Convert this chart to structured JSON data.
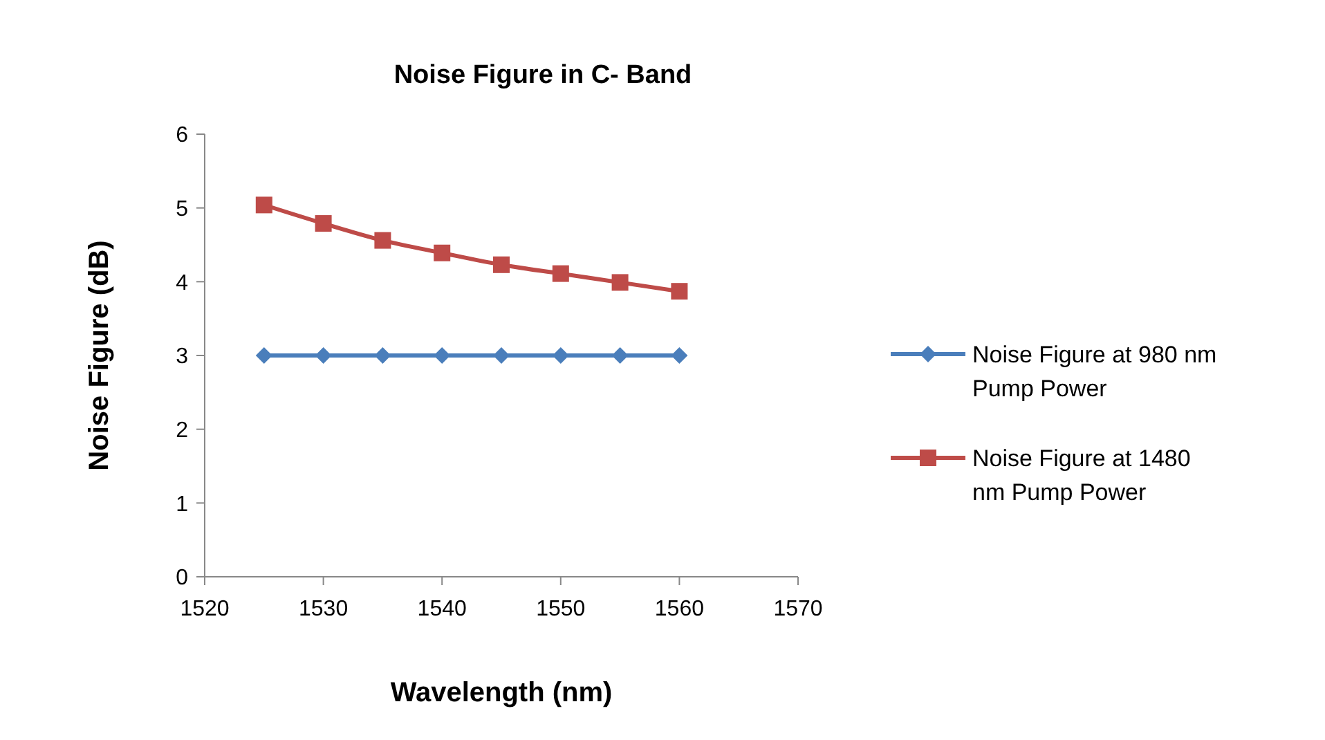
{
  "chart_data": {
    "type": "line",
    "title": "Noise Figure in C- Band",
    "xlabel": "Wavelength (nm)",
    "ylabel": "Noise Figure (dB)",
    "x": [
      1525,
      1530,
      1535,
      1540,
      1545,
      1550,
      1555,
      1560
    ],
    "series": [
      {
        "name": "Noise Figure at 980 nm Pump Power",
        "color": "#4a7ebb",
        "marker": "diamond",
        "values": [
          3,
          3,
          3,
          3,
          3,
          3,
          3,
          3
        ]
      },
      {
        "name": "Noise Figure at 1480 nm Pump Power",
        "color": "#be4b48",
        "marker": "square",
        "values": [
          5.04,
          4.79,
          4.56,
          4.39,
          4.23,
          4.11,
          3.99,
          3.87
        ]
      }
    ],
    "xlim": [
      1520,
      1570
    ],
    "xticks": [
      1520,
      1530,
      1540,
      1550,
      1560,
      1570
    ],
    "ylim": [
      0,
      6
    ],
    "yticks": [
      0,
      1,
      2,
      3,
      4,
      5,
      6
    ],
    "grid": false,
    "legend": "right",
    "line_style": "solid"
  }
}
